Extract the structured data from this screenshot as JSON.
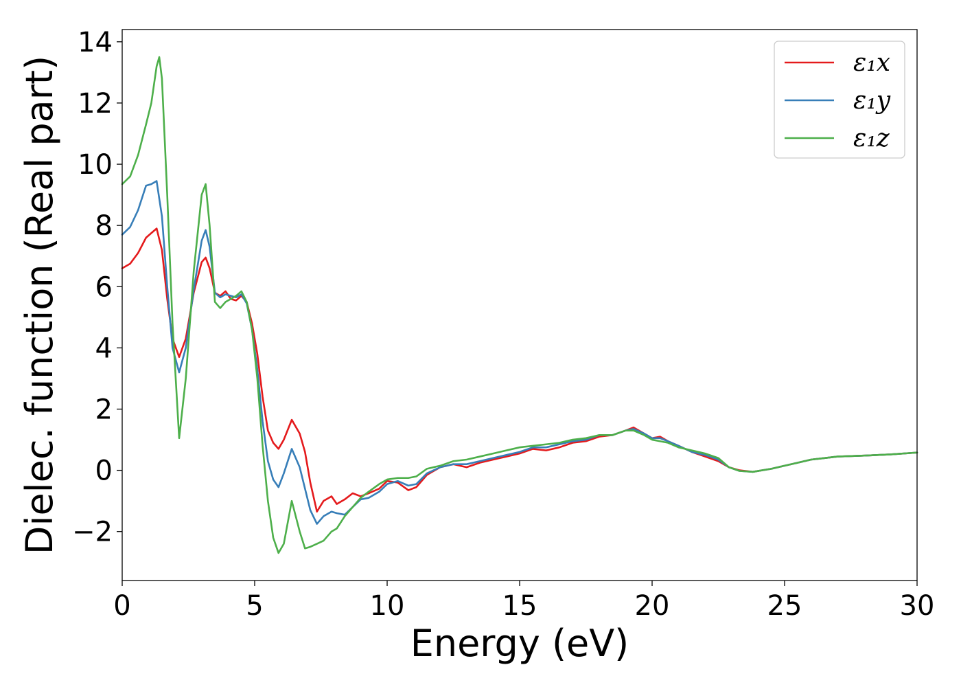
{
  "chart_data": {
    "type": "line",
    "title": "",
    "xlabel": "Energy (eV)",
    "ylabel": "Dielec. function (Real part)",
    "xlim": [
      0,
      30
    ],
    "ylim": [
      -3.6,
      14.4
    ],
    "xticks": [
      0,
      5,
      10,
      15,
      20,
      25,
      30
    ],
    "yticks": [
      -2,
      0,
      2,
      4,
      6,
      8,
      10,
      12,
      14
    ],
    "ytick_labels": [
      "−2",
      "0",
      "2",
      "4",
      "6",
      "8",
      "10",
      "12",
      "14"
    ],
    "grid": false,
    "legend_position": "top-right",
    "series": [
      {
        "name": "ε₁x",
        "color": "#e41a1c",
        "x": [
          0,
          0.3,
          0.6,
          0.9,
          1.1,
          1.3,
          1.5,
          1.7,
          1.9,
          2.15,
          2.4,
          2.7,
          3.0,
          3.15,
          3.3,
          3.5,
          3.7,
          3.9,
          4.1,
          4.3,
          4.5,
          4.7,
          4.9,
          5.1,
          5.3,
          5.5,
          5.7,
          5.9,
          6.1,
          6.4,
          6.7,
          6.9,
          7.1,
          7.35,
          7.6,
          7.9,
          8.1,
          8.4,
          8.7,
          9.0,
          9.3,
          9.7,
          10.0,
          10.4,
          10.8,
          11.1,
          11.5,
          12.0,
          12.5,
          13.0,
          13.5,
          14.0,
          14.5,
          15.0,
          15.5,
          16.0,
          16.5,
          17.0,
          17.5,
          18.0,
          18.5,
          19.0,
          19.3,
          19.7,
          20.0,
          20.3,
          20.6,
          21.0,
          21.5,
          22.0,
          22.5,
          22.9,
          23.3,
          23.8,
          24.5,
          25.0,
          25.5,
          26.0,
          26.5,
          27.0,
          28.0,
          29.0,
          30.0
        ],
        "y": [
          6.6,
          6.75,
          7.1,
          7.6,
          7.75,
          7.9,
          7.2,
          5.6,
          4.3,
          3.7,
          4.3,
          5.8,
          6.8,
          6.95,
          6.6,
          5.8,
          5.7,
          5.85,
          5.6,
          5.55,
          5.7,
          5.5,
          4.8,
          3.8,
          2.4,
          1.3,
          0.9,
          0.7,
          1.0,
          1.65,
          1.2,
          0.6,
          -0.4,
          -1.35,
          -1.0,
          -0.85,
          -1.1,
          -0.95,
          -0.75,
          -0.85,
          -0.75,
          -0.6,
          -0.35,
          -0.4,
          -0.65,
          -0.55,
          -0.15,
          0.1,
          0.2,
          0.1,
          0.25,
          0.35,
          0.45,
          0.55,
          0.7,
          0.65,
          0.75,
          0.9,
          0.95,
          1.1,
          1.15,
          1.3,
          1.4,
          1.2,
          1.05,
          1.1,
          0.95,
          0.8,
          0.6,
          0.45,
          0.3,
          0.1,
          0.0,
          -0.05,
          0.05,
          0.15,
          0.25,
          0.35,
          0.4,
          0.45,
          0.48,
          0.52,
          0.58
        ]
      },
      {
        "name": "ε₁y",
        "color": "#377eb8",
        "x": [
          0,
          0.3,
          0.6,
          0.9,
          1.1,
          1.3,
          1.5,
          1.7,
          1.9,
          2.15,
          2.4,
          2.7,
          3.0,
          3.15,
          3.3,
          3.5,
          3.7,
          3.9,
          4.1,
          4.3,
          4.5,
          4.7,
          4.9,
          5.1,
          5.3,
          5.5,
          5.7,
          5.9,
          6.1,
          6.4,
          6.7,
          6.9,
          7.1,
          7.35,
          7.6,
          7.9,
          8.1,
          8.4,
          8.7,
          9.0,
          9.3,
          9.7,
          10.0,
          10.4,
          10.8,
          11.1,
          11.5,
          12.0,
          12.5,
          13.0,
          13.5,
          14.0,
          14.5,
          15.0,
          15.5,
          16.0,
          16.5,
          17.0,
          17.5,
          18.0,
          18.5,
          19.0,
          19.3,
          19.7,
          20.0,
          20.3,
          20.6,
          21.0,
          21.5,
          22.0,
          22.5,
          22.9,
          23.3,
          23.8,
          24.5,
          25.0,
          25.5,
          26.0,
          26.5,
          27.0,
          28.0,
          29.0,
          30.0
        ],
        "y": [
          7.7,
          7.95,
          8.5,
          9.3,
          9.35,
          9.45,
          8.3,
          6.0,
          4.0,
          3.2,
          4.0,
          5.9,
          7.5,
          7.85,
          7.3,
          5.8,
          5.65,
          5.75,
          5.7,
          5.65,
          5.75,
          5.45,
          4.6,
          3.3,
          1.6,
          0.3,
          -0.3,
          -0.55,
          -0.1,
          0.7,
          0.1,
          -0.6,
          -1.3,
          -1.75,
          -1.5,
          -1.35,
          -1.4,
          -1.45,
          -1.2,
          -0.95,
          -0.9,
          -0.7,
          -0.45,
          -0.35,
          -0.5,
          -0.45,
          -0.1,
          0.1,
          0.2,
          0.2,
          0.3,
          0.4,
          0.5,
          0.6,
          0.75,
          0.75,
          0.85,
          0.95,
          1.0,
          1.15,
          1.15,
          1.3,
          1.35,
          1.2,
          1.05,
          1.05,
          0.95,
          0.8,
          0.6,
          0.5,
          0.35,
          0.1,
          -0.02,
          -0.05,
          0.05,
          0.15,
          0.25,
          0.35,
          0.4,
          0.45,
          0.48,
          0.52,
          0.58
        ]
      },
      {
        "name": "ε₁z",
        "color": "#4daf4a",
        "x": [
          0,
          0.3,
          0.6,
          0.9,
          1.1,
          1.3,
          1.4,
          1.5,
          1.7,
          1.9,
          2.15,
          2.4,
          2.7,
          3.0,
          3.15,
          3.3,
          3.5,
          3.7,
          3.9,
          4.1,
          4.3,
          4.5,
          4.7,
          4.9,
          5.1,
          5.3,
          5.5,
          5.7,
          5.9,
          6.1,
          6.4,
          6.7,
          6.9,
          7.1,
          7.35,
          7.6,
          7.9,
          8.1,
          8.4,
          8.7,
          9.0,
          9.3,
          9.7,
          10.0,
          10.4,
          10.8,
          11.1,
          11.5,
          12.0,
          12.5,
          13.0,
          13.5,
          14.0,
          14.5,
          15.0,
          15.5,
          16.0,
          16.5,
          17.0,
          17.5,
          18.0,
          18.5,
          19.0,
          19.3,
          19.7,
          20.0,
          20.3,
          20.6,
          21.0,
          21.5,
          22.0,
          22.5,
          22.9,
          23.3,
          23.8,
          24.5,
          25.0,
          25.5,
          26.0,
          26.5,
          27.0,
          28.0,
          29.0,
          30.0
        ],
        "y": [
          9.35,
          9.6,
          10.3,
          11.3,
          12.0,
          13.2,
          13.5,
          12.8,
          9.0,
          4.8,
          1.05,
          3.0,
          6.5,
          9.0,
          9.35,
          8.0,
          5.5,
          5.3,
          5.5,
          5.6,
          5.7,
          5.85,
          5.5,
          4.6,
          3.0,
          0.8,
          -1.0,
          -2.2,
          -2.7,
          -2.4,
          -1.0,
          -2.0,
          -2.55,
          -2.5,
          -2.4,
          -2.3,
          -2.0,
          -1.9,
          -1.5,
          -1.2,
          -0.9,
          -0.7,
          -0.45,
          -0.3,
          -0.25,
          -0.25,
          -0.2,
          0.05,
          0.15,
          0.3,
          0.35,
          0.45,
          0.55,
          0.65,
          0.75,
          0.8,
          0.85,
          0.9,
          1.0,
          1.05,
          1.15,
          1.15,
          1.3,
          1.3,
          1.15,
          1.0,
          0.95,
          0.9,
          0.75,
          0.65,
          0.55,
          0.4,
          0.1,
          -0.02,
          -0.05,
          0.05,
          0.15,
          0.25,
          0.35,
          0.4,
          0.45,
          0.48,
          0.52,
          0.58
        ]
      }
    ]
  }
}
